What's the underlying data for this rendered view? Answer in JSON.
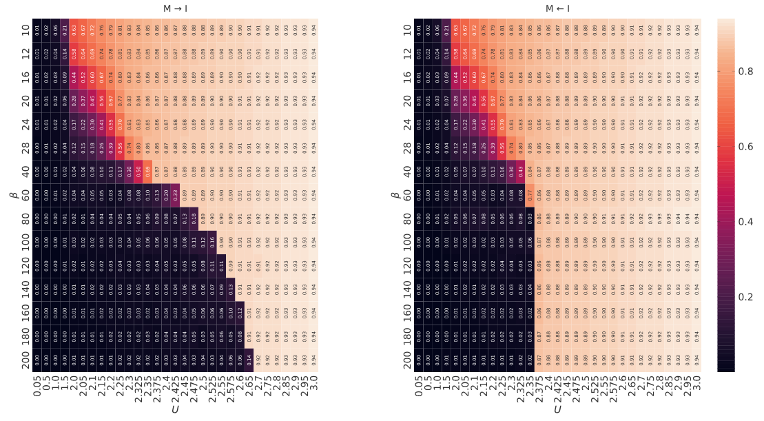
{
  "chart_data": [
    {
      "type": "heatmap",
      "title": "M → I",
      "xlabel": "U",
      "ylabel": "β",
      "cell_labels": [
        [
          "0.01",
          "0.02",
          "0.06",
          "0.21",
          "0.63",
          "0.67",
          "0.72",
          "0.76",
          "0.79",
          "0.81",
          "0.83",
          "0.84",
          "0.85",
          "0.86",
          "0.86",
          "0.87",
          "0.88",
          "0.88",
          "0.88",
          "0.89",
          "0.89",
          "0.90",
          "0.90",
          "0.91",
          "0.91",
          "0.92",
          "0.92",
          "0.93",
          "0.93",
          "0.93",
          "0.94"
        ],
        [
          "0.01",
          "0.02",
          "0.04",
          "0.14",
          "0.58",
          "0.64",
          "0.69",
          "0.74",
          "0.78",
          "0.81",
          "0.83",
          "0.84",
          "0.85",
          "0.86",
          "0.87",
          "0.87",
          "0.88",
          "0.88",
          "0.89",
          "0.89",
          "0.90",
          "0.90",
          "0.90",
          "0.91",
          "0.91",
          "0.92",
          "0.92",
          "0.93",
          "0.93",
          "0.93",
          "0.94"
        ],
        [
          "0.01",
          "0.02",
          "0.03",
          "0.09",
          "0.44",
          "0.52",
          "0.60",
          "0.67",
          "0.74",
          "0.80",
          "0.83",
          "0.84",
          "0.86",
          "0.86",
          "0.87",
          "0.88",
          "0.88",
          "0.89",
          "0.89",
          "0.89",
          "0.90",
          "0.90",
          "0.90",
          "0.91",
          "0.92",
          "0.92",
          "0.92",
          "0.93",
          "0.93",
          "0.93",
          "0.94"
        ],
        [
          "0.01",
          "0.01",
          "0.02",
          "0.06",
          "0.28",
          "0.37",
          "0.45",
          "0.56",
          "0.67",
          "0.77",
          "0.83",
          "0.84",
          "0.86",
          "0.87",
          "0.87",
          "0.88",
          "0.88",
          "0.89",
          "0.89",
          "0.90",
          "0.90",
          "0.90",
          "0.91",
          "0.91",
          "0.92",
          "0.92",
          "0.92",
          "0.93",
          "0.93",
          "0.93",
          "0.94"
        ],
        [
          "0.01",
          "0.01",
          "0.02",
          "0.04",
          "0.17",
          "0.22",
          "0.30",
          "0.41",
          "0.55",
          "0.70",
          "0.81",
          "0.83",
          "0.85",
          "0.86",
          "0.87",
          "0.88",
          "0.88",
          "0.89",
          "0.89",
          "0.90",
          "0.90",
          "0.90",
          "0.91",
          "0.91",
          "0.92",
          "0.92",
          "0.92",
          "0.93",
          "0.93",
          "0.93",
          "0.94"
        ],
        [
          "0.00",
          "0.01",
          "0.02",
          "0.04",
          "0.12",
          "0.15",
          "0.18",
          "0.26",
          "0.39",
          "0.56",
          "0.74",
          "0.80",
          "0.86",
          "0.86",
          "0.87",
          "0.88",
          "0.89",
          "0.89",
          "0.89",
          "0.90",
          "0.90",
          "0.90",
          "0.91",
          "0.91",
          "0.92",
          "0.92",
          "0.92",
          "0.93",
          "0.93",
          "0.93",
          "0.94"
        ],
        [
          "0.00",
          "0.00",
          "0.01",
          "0.02",
          "0.04",
          "0.06",
          "0.08",
          "0.10",
          "0.11",
          "0.17",
          "0.30",
          "0.50",
          "0.69",
          "0.87",
          "0.87",
          "0.88",
          "0.89",
          "0.89",
          "0.89",
          "0.90",
          "0.90",
          "0.90",
          "0.91",
          "0.91",
          "0.92",
          "0.92",
          "0.92",
          "0.93",
          "0.93",
          "0.93",
          "0.94"
        ],
        [
          "0.00",
          "0.00",
          "0.01",
          "0.02",
          "0.04",
          "0.04",
          "0.05",
          "0.05",
          "0.03",
          "0.04",
          "0.08",
          "0.08",
          "0.10",
          "0.13",
          "0.20",
          "0.33",
          "0.89",
          "0.89",
          "0.89",
          "0.90",
          "0.90",
          "0.90",
          "0.91",
          "0.91",
          "0.92",
          "0.92",
          "0.92",
          "0.93",
          "0.93",
          "0.93",
          "0.94"
        ],
        [
          "0.00",
          "0.00",
          "0.00",
          "0.01",
          "0.02",
          "0.01",
          "0.04",
          "0.04",
          "0.04",
          "0.05",
          "0.04",
          "0.05",
          "0.06",
          "0.09",
          "0.08",
          "0.07",
          "0.13",
          "0.18",
          "0.89",
          "0.90",
          "0.90",
          "0.90",
          "0.91",
          "0.91",
          "0.92",
          "0.92",
          "0.92",
          "0.93",
          "0.93",
          "0.93",
          "0.94"
        ],
        [
          "0.00",
          "0.00",
          "0.00",
          "0.01",
          "0.03",
          "0.02",
          "0.02",
          "0.03",
          "0.03",
          "0.03",
          "0.04",
          "0.05",
          "0.06",
          "0.06",
          "0.05",
          "0.05",
          "0.08",
          "0.11",
          "0.12",
          "0.16",
          "0.90",
          "0.90",
          "0.91",
          "0.91",
          "0.92",
          "0.92",
          "0.92",
          "0.93",
          "0.93",
          "0.93",
          "0.94"
        ],
        [
          "0.00",
          "0.00",
          "0.00",
          "0.01",
          "0.02",
          "0.01",
          "0.02",
          "0.02",
          "0.03",
          "0.04",
          "0.03",
          "0.03",
          "0.03",
          "0.04",
          "0.05",
          "0.03",
          "0.05",
          "0.05",
          "0.08",
          "0.11",
          "0.11",
          "0.90",
          "0.91",
          "0.91",
          "0.91",
          "0.92",
          "0.92",
          "0.93",
          "0.93",
          "0.93",
          "0.94"
        ],
        [
          "0.00",
          "0.00",
          "0.00",
          "0.00",
          "0.01",
          "0.01",
          "0.02",
          "0.02",
          "0.02",
          "0.03",
          "0.03",
          "0.03",
          "0.04",
          "0.03",
          "0.04",
          "0.04",
          "0.06",
          "0.06",
          "0.06",
          "0.07",
          "0.09",
          "0.13",
          "0.91",
          "0.91",
          "0.92",
          "0.92",
          "0.92",
          "0.93",
          "0.93",
          "0.93",
          "0.94"
        ],
        [
          "0.00",
          "0.00",
          "0.00",
          "0.00",
          "0.01",
          "0.01",
          "0.01",
          "0.02",
          "0.02",
          "0.02",
          "0.03",
          "0.03",
          "0.02",
          "0.03",
          "0.04",
          "0.03",
          "0.04",
          "0.05",
          "0.06",
          "0.06",
          "0.06",
          "0.10",
          "0.12",
          "0.91",
          "0.92",
          "0.92",
          "0.92",
          "0.93",
          "0.93",
          "0.93",
          "0.94"
        ],
        [
          "0.00",
          "0.00",
          "0.00",
          "0.00",
          "0.01",
          "0.01",
          "0.01",
          "0.01",
          "0.02",
          "0.02",
          "0.02",
          "0.02",
          "0.03",
          "0.02",
          "0.04",
          "0.04",
          "0.04",
          "0.05",
          "0.03",
          "0.05",
          "0.06",
          "0.05",
          "0.08",
          "0.91",
          "0.92",
          "0.92",
          "0.92",
          "0.93",
          "0.93",
          "0.93",
          "0.94"
        ],
        [
          "0.00",
          "0.00",
          "0.00",
          "0.00",
          "0.01",
          "0.01",
          "0.01",
          "0.01",
          "0.01",
          "0.02",
          "0.02",
          "0.02",
          "0.02",
          "0.02",
          "0.03",
          "0.03",
          "0.04",
          "0.03",
          "0.04",
          "0.03",
          "0.04",
          "0.06",
          "0.06",
          "0.14",
          "0.92",
          "0.92",
          "0.92",
          "0.93",
          "0.93",
          "0.93",
          "0.94"
        ]
      ],
      "categories": [
        "0.05",
        "0.5",
        "1.0",
        "1.5",
        "2.0",
        "2.05",
        "2.1",
        "2.15",
        "2.2",
        "2.25",
        "2.3",
        "2.325",
        "2.35",
        "2.375",
        "2.4",
        "2.425",
        "2.45",
        "2.475",
        "2.5",
        "2.525",
        "2.55",
        "2.575",
        "2.6",
        "2.65",
        "2.7",
        "2.75",
        "2.8",
        "2.85",
        "2.9",
        "2.95",
        "3.0"
      ],
      "y_categories": [
        "10",
        "12",
        "16",
        "20",
        "24",
        "28",
        "40",
        "60",
        "80",
        "100",
        "120",
        "140",
        "160",
        "180",
        "200"
      ],
      "cells": [
        [
          0.01,
          0.02,
          0.06,
          0.21,
          0.63,
          0.67,
          0.72,
          0.76,
          0.79,
          0.81,
          0.83,
          0.84,
          0.85,
          0.86,
          0.86,
          0.87,
          0.88,
          0.88,
          0.88,
          0.89,
          0.89,
          0.9,
          0.9,
          0.91,
          0.91,
          0.92,
          0.92,
          0.93,
          0.93,
          0.93,
          0.94
        ],
        [
          0.01,
          0.02,
          0.04,
          0.14,
          0.58,
          0.64,
          0.69,
          0.74,
          0.78,
          0.81,
          0.83,
          0.84,
          0.85,
          0.86,
          0.87,
          0.87,
          0.88,
          0.88,
          0.89,
          0.89,
          0.9,
          0.9,
          0.9,
          0.91,
          0.91,
          0.92,
          0.92,
          0.93,
          0.93,
          0.93,
          0.94
        ],
        [
          0.01,
          0.02,
          0.03,
          0.09,
          0.44,
          0.52,
          0.6,
          0.67,
          0.74,
          0.8,
          0.83,
          0.84,
          0.86,
          0.86,
          0.87,
          0.88,
          0.88,
          0.89,
          0.89,
          0.89,
          0.9,
          0.9,
          0.9,
          0.91,
          0.92,
          0.92,
          0.92,
          0.93,
          0.93,
          0.93,
          0.94
        ],
        [
          0.01,
          0.01,
          0.02,
          0.06,
          0.28,
          0.37,
          0.45,
          0.56,
          0.67,
          0.77,
          0.83,
          0.84,
          0.86,
          0.87,
          0.87,
          0.88,
          0.88,
          0.89,
          0.89,
          0.9,
          0.9,
          0.9,
          0.91,
          0.91,
          0.92,
          0.92,
          0.92,
          0.93,
          0.93,
          0.93,
          0.94
        ],
        [
          0.01,
          0.01,
          0.02,
          0.04,
          0.17,
          0.22,
          0.3,
          0.41,
          0.55,
          0.7,
          0.81,
          0.83,
          0.85,
          0.86,
          0.87,
          0.88,
          0.88,
          0.89,
          0.89,
          0.9,
          0.9,
          0.9,
          0.91,
          0.91,
          0.92,
          0.92,
          0.92,
          0.93,
          0.93,
          0.93,
          0.94
        ],
        [
          0.0,
          0.01,
          0.02,
          0.04,
          0.12,
          0.15,
          0.18,
          0.26,
          0.39,
          0.56,
          0.74,
          0.8,
          0.86,
          0.86,
          0.87,
          0.88,
          0.89,
          0.89,
          0.89,
          0.9,
          0.9,
          0.9,
          0.91,
          0.91,
          0.92,
          0.92,
          0.92,
          0.93,
          0.93,
          0.93,
          0.94
        ],
        [
          0.0,
          0.0,
          0.01,
          0.02,
          0.04,
          0.06,
          0.08,
          0.1,
          0.11,
          0.17,
          0.3,
          0.5,
          0.69,
          0.87,
          0.87,
          0.88,
          0.89,
          0.89,
          0.89,
          0.9,
          0.9,
          0.9,
          0.91,
          0.91,
          0.92,
          0.92,
          0.92,
          0.93,
          0.93,
          0.93,
          0.94
        ],
        [
          0.0,
          0.0,
          0.01,
          0.02,
          0.04,
          0.04,
          0.05,
          0.05,
          0.03,
          0.04,
          0.08,
          0.08,
          0.1,
          0.13,
          0.2,
          0.33,
          0.89,
          0.89,
          0.89,
          0.9,
          0.9,
          0.9,
          0.91,
          0.91,
          0.92,
          0.92,
          0.92,
          0.93,
          0.93,
          0.93,
          0.94
        ],
        [
          0.0,
          0.0,
          0.0,
          0.01,
          0.02,
          0.01,
          0.04,
          0.04,
          0.04,
          0.05,
          0.04,
          0.05,
          0.06,
          0.09,
          0.08,
          0.07,
          0.13,
          0.18,
          0.89,
          0.9,
          0.9,
          0.9,
          0.91,
          0.91,
          0.92,
          0.92,
          0.92,
          0.93,
          0.93,
          0.93,
          0.94
        ],
        [
          0.0,
          0.0,
          0.0,
          0.01,
          0.03,
          0.02,
          0.02,
          0.03,
          0.03,
          0.03,
          0.04,
          0.05,
          0.06,
          0.06,
          0.05,
          0.05,
          0.08,
          0.11,
          0.12,
          0.16,
          0.9,
          0.9,
          0.91,
          0.91,
          0.92,
          0.92,
          0.92,
          0.93,
          0.93,
          0.93,
          0.94
        ],
        [
          0.0,
          0.0,
          0.0,
          0.01,
          0.02,
          0.01,
          0.02,
          0.02,
          0.03,
          0.04,
          0.03,
          0.03,
          0.03,
          0.04,
          0.05,
          0.03,
          0.05,
          0.05,
          0.08,
          0.11,
          0.11,
          0.9,
          0.91,
          0.91,
          0.91,
          0.92,
          0.92,
          0.93,
          0.93,
          0.93,
          0.94
        ],
        [
          0.0,
          0.0,
          0.0,
          0.0,
          0.01,
          0.01,
          0.02,
          0.02,
          0.02,
          0.03,
          0.03,
          0.03,
          0.04,
          0.03,
          0.04,
          0.04,
          0.06,
          0.06,
          0.06,
          0.07,
          0.09,
          0.13,
          0.91,
          0.91,
          0.92,
          0.92,
          0.92,
          0.93,
          0.93,
          0.93,
          0.94
        ],
        [
          0.0,
          0.0,
          0.0,
          0.0,
          0.01,
          0.01,
          0.01,
          0.02,
          0.02,
          0.02,
          0.03,
          0.03,
          0.02,
          0.03,
          0.04,
          0.03,
          0.04,
          0.05,
          0.06,
          0.06,
          0.06,
          0.1,
          0.12,
          0.91,
          0.92,
          0.92,
          0.92,
          0.93,
          0.93,
          0.93,
          0.94
        ],
        [
          0.0,
          0.0,
          0.0,
          0.0,
          0.01,
          0.01,
          0.01,
          0.01,
          0.02,
          0.02,
          0.02,
          0.02,
          0.03,
          0.02,
          0.04,
          0.04,
          0.04,
          0.05,
          0.03,
          0.05,
          0.06,
          0.05,
          0.08,
          0.91,
          0.92,
          0.92,
          0.92,
          0.93,
          0.93,
          0.93,
          0.94
        ],
        [
          0.0,
          0.0,
          0.0,
          0.0,
          0.01,
          0.01,
          0.01,
          0.01,
          0.01,
          0.02,
          0.02,
          0.02,
          0.02,
          0.02,
          0.03,
          0.03,
          0.04,
          0.03,
          0.04,
          0.03,
          0.04,
          0.06,
          0.06,
          0.14,
          0.92,
          0.92,
          0.92,
          0.93,
          0.93,
          0.93,
          0.94
        ]
      ]
    },
    {
      "type": "heatmap",
      "title": "M ← I",
      "xlabel": "U",
      "ylabel": "β",
      "clim": [
        0,
        0.94
      ],
      "cticks": [
        0.2,
        0.4,
        0.6,
        0.8
      ],
      "cell_labels": [
        [
          "0.01",
          "0.02",
          "0.06",
          "0.21",
          "0.63",
          "0.67",
          "0.72",
          "0.76",
          "0.79",
          "0.81",
          "0.83",
          "0.84",
          "0.85",
          "0.86",
          "0.86",
          "0.87",
          "0.88",
          "0.88",
          "0.88",
          "0.89",
          "0.89",
          "0.90",
          "0.90",
          "0.91",
          "0.91",
          "0.92",
          "0.92",
          "0.93",
          "0.93",
          "0.93",
          "0.94"
        ],
        [
          "0.01",
          "0.02",
          "0.04",
          "0.14",
          "0.58",
          "0.64",
          "0.69",
          "0.74",
          "0.78",
          "0.81",
          "0.83",
          "0.84",
          "0.85",
          "0.86",
          "0.87",
          "0.87",
          "0.88",
          "0.88",
          "0.89",
          "0.89",
          "0.90",
          "0.90",
          "0.90",
          "0.91",
          "0.91",
          "0.92",
          "0.92",
          "0.93",
          "0.93",
          "0.93",
          "0.94"
        ],
        [
          "0.01",
          "0.02",
          "0.03",
          "0.09",
          "0.44",
          "0.52",
          "0.60",
          "0.67",
          "0.74",
          "0.80",
          "0.83",
          "0.84",
          "0.86",
          "0.86",
          "0.87",
          "0.88",
          "0.88",
          "0.89",
          "0.89",
          "0.89",
          "0.90",
          "0.90",
          "0.90",
          "0.91",
          "0.92",
          "0.92",
          "0.92",
          "0.93",
          "0.93",
          "0.93",
          "0.94"
        ],
        [
          "0.01",
          "0.01",
          "0.03",
          "0.07",
          "0.28",
          "0.36",
          "0.45",
          "0.56",
          "0.67",
          "0.77",
          "0.83",
          "0.84",
          "0.86",
          "0.86",
          "0.87",
          "0.88",
          "0.88",
          "0.89",
          "0.89",
          "0.90",
          "0.90",
          "0.90",
          "0.91",
          "0.91",
          "0.92",
          "0.92",
          "0.92",
          "0.93",
          "0.93",
          "0.93",
          "0.94"
        ],
        [
          "0.01",
          "0.01",
          "0.02",
          "0.04",
          "0.17",
          "0.22",
          "0.30",
          "0.41",
          "0.55",
          "0.70",
          "0.81",
          "0.83",
          "0.85",
          "0.86",
          "0.87",
          "0.88",
          "0.88",
          "0.89",
          "0.89",
          "0.90",
          "0.90",
          "0.90",
          "0.91",
          "0.91",
          "0.92",
          "0.92",
          "0.92",
          "0.93",
          "0.93",
          "0.93",
          "0.94"
        ],
        [
          "0.00",
          "0.01",
          "0.02",
          "0.04",
          "0.12",
          "0.15",
          "0.18",
          "0.26",
          "0.39",
          "0.56",
          "0.74",
          "0.80",
          "0.86",
          "0.86",
          "0.87",
          "0.88",
          "0.89",
          "0.89",
          "0.89",
          "0.90",
          "0.90",
          "0.90",
          "0.91",
          "0.91",
          "0.92",
          "0.92",
          "0.92",
          "0.93",
          "0.93",
          "0.93",
          "0.94"
        ],
        [
          "0.00",
          "0.00",
          "0.01",
          "0.02",
          "0.05",
          "0.07",
          "0.07",
          "0.10",
          "0.13",
          "0.16",
          "0.30",
          "0.43",
          "0.84",
          "0.87",
          "0.88",
          "0.88",
          "0.89",
          "0.89",
          "0.89",
          "0.90",
          "0.90",
          "0.90",
          "0.91",
          "0.91",
          "0.92",
          "0.92",
          "0.92",
          "0.93",
          "0.93",
          "0.93",
          "0.94"
        ],
        [
          "0.00",
          "0.00",
          "0.01",
          "0.02",
          "0.04",
          "0.04",
          "0.05",
          "0.05",
          "0.03",
          "0.04",
          "0.08",
          "0.08",
          "0.77",
          "0.86",
          "0.88",
          "0.88",
          "0.89",
          "0.89",
          "0.89",
          "0.90",
          "0.90",
          "0.90",
          "0.91",
          "0.91",
          "0.92",
          "0.92",
          "0.92",
          "0.93",
          "0.93",
          "0.93",
          "0.94"
        ],
        [
          "0.00",
          "0.00",
          "0.01",
          "0.02",
          "0.05",
          "0.06",
          "0.07",
          "0.08",
          "0.05",
          "0.06",
          "0.06",
          "0.08",
          "0.03",
          "0.86",
          "0.88",
          "0.89",
          "0.89",
          "0.90",
          "0.90",
          "0.90",
          "0.91",
          "0.91",
          "0.91",
          "0.92",
          "0.92",
          "0.93",
          "0.93",
          "0.93",
          "0.94",
          "0.94",
          "0.94"
        ],
        [
          "0.00",
          "0.00",
          "0.00",
          "0.01",
          "0.02",
          "0.02",
          "0.03",
          "0.02",
          "0.03",
          "0.03",
          "0.05",
          "0.05",
          "0.06",
          "0.87",
          "0.88",
          "0.88",
          "0.89",
          "0.89",
          "0.89",
          "0.90",
          "0.90",
          "0.90",
          "0.91",
          "0.91",
          "0.92",
          "0.92",
          "0.92",
          "0.93",
          "0.93",
          "0.93",
          "0.94"
        ],
        [
          "0.00",
          "0.00",
          "0.00",
          "0.00",
          "0.01",
          "0.02",
          "0.02",
          "0.02",
          "0.02",
          "0.04",
          "0.04",
          "0.03",
          "0.03",
          "0.86",
          "0.88",
          "0.88",
          "0.89",
          "0.89",
          "0.89",
          "0.90",
          "0.90",
          "0.90",
          "0.91",
          "0.91",
          "0.92",
          "0.92",
          "0.92",
          "0.93",
          "0.93",
          "0.93",
          "0.94"
        ],
        [
          "0.00",
          "0.00",
          "0.00",
          "0.00",
          "0.01",
          "0.02",
          "0.01",
          "0.02",
          "0.02",
          "0.03",
          "0.03",
          "0.03",
          "0.04",
          "0.86",
          "0.88",
          "0.88",
          "0.89",
          "0.89",
          "0.89",
          "0.90",
          "0.90",
          "0.90",
          "0.91",
          "0.91",
          "0.92",
          "0.92",
          "0.92",
          "0.93",
          "0.93",
          "0.93",
          "0.94"
        ],
        [
          "0.00",
          "0.00",
          "0.00",
          "0.00",
          "0.01",
          "0.01",
          "0.01",
          "0.02",
          "0.02",
          "0.02",
          "0.02",
          "0.03",
          "0.02",
          "0.86",
          "0.88",
          "0.88",
          "0.89",
          "0.89",
          "0.89",
          "0.90",
          "0.90",
          "0.90",
          "0.91",
          "0.91",
          "0.92",
          "0.92",
          "0.92",
          "0.93",
          "0.93",
          "0.93",
          "0.94"
        ],
        [
          "0.00",
          "0.00",
          "0.00",
          "0.00",
          "0.01",
          "0.01",
          "0.01",
          "0.01",
          "0.02",
          "0.02",
          "0.02",
          "0.02",
          "0.03",
          "0.87",
          "0.88",
          "0.88",
          "0.89",
          "0.89",
          "0.89",
          "0.90",
          "0.90",
          "0.90",
          "0.91",
          "0.91",
          "0.92",
          "0.92",
          "0.92",
          "0.93",
          "0.93",
          "0.93",
          "0.94"
        ],
        [
          "0.00",
          "0.00",
          "0.00",
          "0.01",
          "0.01",
          "0.01",
          "0.01",
          "0.01",
          "0.01",
          "0.01",
          "0.01",
          "0.02",
          "0.02",
          "0.87",
          "0.88",
          "0.88",
          "0.89",
          "0.89",
          "0.89",
          "0.90",
          "0.90",
          "0.90",
          "0.91",
          "0.91",
          "0.92",
          "0.92",
          "0.92",
          "0.93",
          "0.93",
          "0.93",
          "0.94"
        ]
      ],
      "categories": [
        "0.05",
        "0.5",
        "1.0",
        "1.5",
        "2.0",
        "2.05",
        "2.1",
        "2.15",
        "2.2",
        "2.25",
        "2.3",
        "2.325",
        "2.35",
        "2.375",
        "2.4",
        "2.425",
        "2.45",
        "2.475",
        "2.5",
        "2.525",
        "2.55",
        "2.575",
        "2.6",
        "2.65",
        "2.7",
        "2.75",
        "2.8",
        "2.85",
        "2.9",
        "2.95",
        "3.0"
      ],
      "y_categories": [
        "10",
        "12",
        "16",
        "20",
        "24",
        "28",
        "40",
        "60",
        "80",
        "100",
        "120",
        "140",
        "160",
        "180",
        "200"
      ],
      "cells": [
        [
          0.01,
          0.02,
          0.06,
          0.21,
          0.63,
          0.67,
          0.72,
          0.76,
          0.79,
          0.81,
          0.83,
          0.84,
          0.85,
          0.86,
          0.86,
          0.87,
          0.88,
          0.88,
          0.88,
          0.89,
          0.89,
          0.9,
          0.9,
          0.91,
          0.91,
          0.92,
          0.92,
          0.93,
          0.93,
          0.93,
          0.94
        ],
        [
          0.01,
          0.02,
          0.04,
          0.14,
          0.58,
          0.64,
          0.69,
          0.74,
          0.78,
          0.81,
          0.83,
          0.84,
          0.85,
          0.86,
          0.87,
          0.87,
          0.88,
          0.88,
          0.89,
          0.89,
          0.9,
          0.9,
          0.9,
          0.91,
          0.91,
          0.92,
          0.92,
          0.93,
          0.93,
          0.93,
          0.94
        ],
        [
          0.01,
          0.02,
          0.03,
          0.09,
          0.44,
          0.52,
          0.6,
          0.67,
          0.74,
          0.8,
          0.83,
          0.84,
          0.86,
          0.86,
          0.87,
          0.88,
          0.88,
          0.89,
          0.89,
          0.89,
          0.9,
          0.9,
          0.9,
          0.91,
          0.92,
          0.92,
          0.92,
          0.93,
          0.93,
          0.93,
          0.94
        ],
        [
          0.01,
          0.01,
          0.03,
          0.07,
          0.28,
          0.36,
          0.45,
          0.56,
          0.67,
          0.77,
          0.83,
          0.84,
          0.86,
          0.86,
          0.87,
          0.88,
          0.88,
          0.89,
          0.89,
          0.9,
          0.9,
          0.9,
          0.91,
          0.91,
          0.92,
          0.92,
          0.92,
          0.93,
          0.93,
          0.93,
          0.94
        ],
        [
          0.01,
          0.01,
          0.02,
          0.04,
          0.17,
          0.22,
          0.3,
          0.41,
          0.55,
          0.7,
          0.81,
          0.83,
          0.85,
          0.86,
          0.87,
          0.88,
          0.88,
          0.89,
          0.89,
          0.9,
          0.9,
          0.9,
          0.91,
          0.91,
          0.92,
          0.92,
          0.92,
          0.93,
          0.93,
          0.93,
          0.94
        ],
        [
          0.0,
          0.01,
          0.02,
          0.04,
          0.12,
          0.15,
          0.18,
          0.26,
          0.39,
          0.56,
          0.74,
          0.8,
          0.86,
          0.86,
          0.87,
          0.88,
          0.89,
          0.89,
          0.89,
          0.9,
          0.9,
          0.9,
          0.91,
          0.91,
          0.92,
          0.92,
          0.92,
          0.93,
          0.93,
          0.93,
          0.94
        ],
        [
          0.0,
          0.0,
          0.01,
          0.02,
          0.05,
          0.07,
          0.07,
          0.1,
          0.13,
          0.16,
          0.3,
          0.43,
          0.84,
          0.87,
          0.88,
          0.88,
          0.89,
          0.89,
          0.89,
          0.9,
          0.9,
          0.9,
          0.91,
          0.91,
          0.92,
          0.92,
          0.92,
          0.93,
          0.93,
          0.93,
          0.94
        ],
        [
          0.0,
          0.0,
          0.01,
          0.02,
          0.04,
          0.04,
          0.05,
          0.05,
          0.03,
          0.04,
          0.08,
          0.08,
          0.77,
          0.86,
          0.88,
          0.88,
          0.89,
          0.89,
          0.89,
          0.9,
          0.9,
          0.9,
          0.91,
          0.91,
          0.92,
          0.92,
          0.92,
          0.93,
          0.93,
          0.93,
          0.94
        ],
        [
          0.0,
          0.0,
          0.01,
          0.02,
          0.05,
          0.06,
          0.07,
          0.08,
          0.05,
          0.06,
          0.06,
          0.08,
          0.03,
          0.86,
          0.88,
          0.89,
          0.89,
          0.9,
          0.9,
          0.9,
          0.91,
          0.91,
          0.91,
          0.92,
          0.92,
          0.93,
          0.93,
          0.93,
          0.94,
          0.94,
          0.94
        ],
        [
          0.0,
          0.0,
          0.0,
          0.01,
          0.02,
          0.02,
          0.03,
          0.02,
          0.03,
          0.03,
          0.05,
          0.05,
          0.06,
          0.87,
          0.88,
          0.88,
          0.89,
          0.89,
          0.89,
          0.9,
          0.9,
          0.9,
          0.91,
          0.91,
          0.92,
          0.92,
          0.92,
          0.93,
          0.93,
          0.93,
          0.94
        ],
        [
          0.0,
          0.0,
          0.0,
          0.0,
          0.01,
          0.02,
          0.02,
          0.02,
          0.02,
          0.04,
          0.04,
          0.03,
          0.03,
          0.86,
          0.88,
          0.88,
          0.89,
          0.89,
          0.89,
          0.9,
          0.9,
          0.9,
          0.91,
          0.91,
          0.92,
          0.92,
          0.92,
          0.93,
          0.93,
          0.93,
          0.94
        ],
        [
          0.0,
          0.0,
          0.0,
          0.0,
          0.01,
          0.02,
          0.01,
          0.02,
          0.02,
          0.03,
          0.03,
          0.03,
          0.04,
          0.86,
          0.88,
          0.88,
          0.89,
          0.89,
          0.89,
          0.9,
          0.9,
          0.9,
          0.91,
          0.91,
          0.92,
          0.92,
          0.92,
          0.93,
          0.93,
          0.93,
          0.94
        ],
        [
          0.0,
          0.0,
          0.0,
          0.0,
          0.01,
          0.01,
          0.01,
          0.02,
          0.02,
          0.02,
          0.02,
          0.03,
          0.02,
          0.86,
          0.88,
          0.88,
          0.89,
          0.89,
          0.89,
          0.9,
          0.9,
          0.9,
          0.91,
          0.91,
          0.92,
          0.92,
          0.92,
          0.93,
          0.93,
          0.93,
          0.94
        ],
        [
          0.0,
          0.0,
          0.0,
          0.0,
          0.01,
          0.01,
          0.01,
          0.01,
          0.02,
          0.02,
          0.02,
          0.02,
          0.03,
          0.87,
          0.88,
          0.88,
          0.89,
          0.89,
          0.89,
          0.9,
          0.9,
          0.9,
          0.91,
          0.91,
          0.92,
          0.92,
          0.92,
          0.93,
          0.93,
          0.93,
          0.94
        ],
        [
          0.0,
          0.0,
          0.0,
          0.01,
          0.01,
          0.01,
          0.01,
          0.01,
          0.01,
          0.01,
          0.01,
          0.02,
          0.02,
          0.87,
          0.88,
          0.88,
          0.89,
          0.89,
          0.89,
          0.9,
          0.9,
          0.9,
          0.91,
          0.91,
          0.92,
          0.92,
          0.92,
          0.93,
          0.93,
          0.93,
          0.94
        ]
      ]
    }
  ]
}
